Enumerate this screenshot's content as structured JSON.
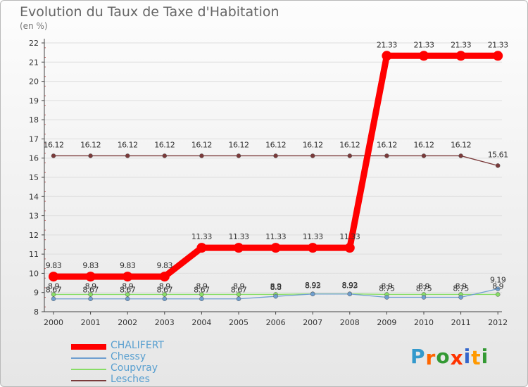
{
  "chart_data": {
    "type": "line",
    "title": "Evolution du Taux de Taxe d'Habitation",
    "subtitle": "(en %)",
    "xlabel": "",
    "ylabel": "",
    "x": [
      "2000",
      "2001",
      "2002",
      "2003",
      "2004",
      "2005",
      "2006",
      "2007",
      "2008",
      "2009",
      "2010",
      "2011",
      "2012"
    ],
    "ylim": [
      8,
      22
    ],
    "yticks": [
      "8",
      "9",
      "10",
      "11",
      "12",
      "13",
      "14",
      "15",
      "16",
      "17",
      "18",
      "19",
      "20",
      "21",
      "22"
    ],
    "grid": true,
    "legend_position": "bottom-left",
    "series": [
      {
        "name": "CHALIFERT",
        "color": "#ff0000",
        "values": [
          9.83,
          9.83,
          9.83,
          9.83,
          11.33,
          11.33,
          11.33,
          11.33,
          11.33,
          21.33,
          21.33,
          21.33,
          21.33
        ],
        "labels": [
          "9.83",
          "9.83",
          "9.83",
          "9.83",
          "11.33",
          "11.33",
          "11.33",
          "11.33",
          "11.33",
          "21.33",
          "21.33",
          "21.33",
          "21.33"
        ]
      },
      {
        "name": "Chessy",
        "color": "#6f9fd0",
        "values": [
          8.67,
          8.67,
          8.67,
          8.67,
          8.67,
          8.67,
          8.8,
          8.92,
          8.92,
          8.75,
          8.75,
          8.75,
          9.19
        ],
        "labels": [
          "8.67",
          "8.67",
          "8.67",
          "8.67",
          "8.67",
          "8.67",
          "8.8",
          "8.92",
          "8.92",
          "8.75",
          "8.75",
          "8.75",
          "9.19"
        ]
      },
      {
        "name": "Coupvray",
        "color": "#88dd66",
        "values": [
          8.9,
          8.9,
          8.9,
          8.9,
          8.9,
          8.9,
          8.9,
          8.93,
          8.93,
          8.9,
          8.9,
          8.9,
          8.9
        ],
        "labels": [
          "8.9",
          "8.9",
          "8.9",
          "8.9",
          "8.9",
          "8.9",
          "8.9",
          "8.93",
          "8.93",
          "8.9",
          "8.9",
          "8.9",
          "8.9"
        ]
      },
      {
        "name": "Lesches",
        "color": "#7a3a3a",
        "values": [
          16.12,
          16.12,
          16.12,
          16.12,
          16.12,
          16.12,
          16.12,
          16.12,
          16.12,
          16.12,
          16.12,
          16.12,
          15.61
        ],
        "labels": [
          "16.12",
          "16.12",
          "16.12",
          "16.12",
          "16.12",
          "16.12",
          "16.12",
          "16.12",
          "16.12",
          "16.12",
          "16.12",
          "16.12",
          "15.61"
        ]
      }
    ]
  },
  "logo": {
    "letters": [
      "P",
      "r",
      "o",
      "x",
      "i",
      "t",
      "i"
    ],
    "colors": [
      "#3399cc",
      "#ff6600",
      "#339933",
      "#ff3300",
      "#3366cc",
      "#ff9900",
      "#339933"
    ]
  }
}
